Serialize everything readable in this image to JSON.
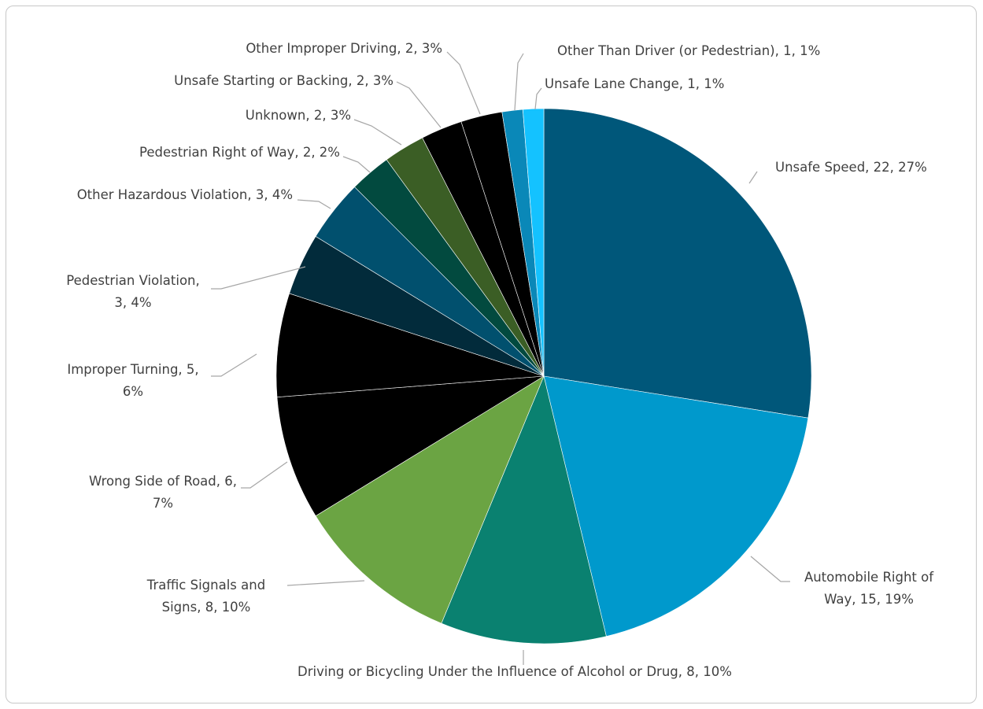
{
  "chart_data": {
    "type": "pie",
    "title": "",
    "start_angle_deg": 0,
    "direction": "clockwise",
    "slices": [
      {
        "label": "Unsafe Speed",
        "value": 22,
        "percent": "27%",
        "color": "#00577a"
      },
      {
        "label": "Automobile Right of Way",
        "value": 15,
        "percent": "19%",
        "color": "#0099cc"
      },
      {
        "label": "Driving or Bicycling Under the Influence of Alcohol or Drug",
        "value": 8,
        "percent": "10%",
        "color": "#0a8170"
      },
      {
        "label": "Traffic Signals and Signs",
        "value": 8,
        "percent": "10%",
        "color": "#6ba443"
      },
      {
        "label": "Wrong Side of Road",
        "value": 6,
        "percent": "7%",
        "color": "#000000"
      },
      {
        "label": "Improper Turning",
        "value": 5,
        "percent": "6%",
        "color": "#000000"
      },
      {
        "label": "Pedestrian Violation",
        "value": 3,
        "percent": "4%",
        "color": "#022b3b"
      },
      {
        "label": "Other Hazardous Violation",
        "value": 3,
        "percent": "4%",
        "color": "#01506e"
      },
      {
        "label": "Pedestrian Right of Way",
        "value": 2,
        "percent": "2%",
        "color": "#024a3f"
      },
      {
        "label": "Unknown",
        "value": 2,
        "percent": "3%",
        "color": "#3b5e25"
      },
      {
        "label": "Unsafe Starting or Backing",
        "value": 2,
        "percent": "3%",
        "color": "#000000"
      },
      {
        "label": "Other Improper Driving",
        "value": 2,
        "percent": "3%",
        "color": "#000000"
      },
      {
        "label": "Other Than Driver (or Pedestrian)",
        "value": 1,
        "percent": "1%",
        "color": "#0a88b8"
      },
      {
        "label": "Unsafe Lane Change",
        "value": 1,
        "percent": "1%",
        "color": "#14c2ff"
      }
    ],
    "data_labels": [
      {
        "lines": [
          "Unsafe Speed, 22, 27%"
        ]
      },
      {
        "lines": [
          "Automobile Right of",
          "Way, 15, 19%"
        ]
      },
      {
        "lines": [
          "Driving or Bicycling Under the Influence of Alcohol or Drug, 8, 10%"
        ]
      },
      {
        "lines": [
          "Traffic Signals and",
          "Signs, 8, 10%"
        ]
      },
      {
        "lines": [
          "Wrong Side of Road, 6,",
          "7%"
        ]
      },
      {
        "lines": [
          "Improper Turning, 5,",
          "6%"
        ]
      },
      {
        "lines": [
          "Pedestrian Violation,",
          "3, 4%"
        ]
      },
      {
        "lines": [
          "Other Hazardous Violation, 3, 4%"
        ]
      },
      {
        "lines": [
          "Pedestrian Right of Way, 2, 2%"
        ]
      },
      {
        "lines": [
          "Unknown, 2, 3%"
        ]
      },
      {
        "lines": [
          "Unsafe Starting or Backing, 2, 3%"
        ]
      },
      {
        "lines": [
          "Other Improper Driving, 2, 3%"
        ]
      },
      {
        "lines": [
          "Other Than Driver (or Pedestrian), 1, 1%"
        ]
      },
      {
        "lines": [
          "Unsafe Lane Change, 1, 1%"
        ]
      }
    ],
    "legend": "none"
  }
}
